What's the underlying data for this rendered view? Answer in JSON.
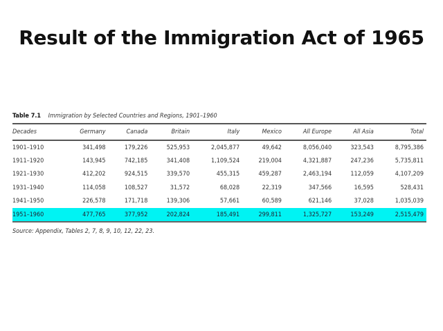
{
  "slide": {
    "title": "Result of the Immigration Act of 1965"
  },
  "table": {
    "label": "Table 7.1",
    "caption": "Immigration by Selected Countries and Regions, 1901–1960",
    "columns": [
      "Decades",
      "Germany",
      "Canada",
      "Britain",
      "Italy",
      "Mexico",
      "All Europe",
      "All Asia",
      "Total"
    ],
    "rows": [
      [
        "1901–1910",
        "341,498",
        "179,226",
        "525,953",
        "2,045,877",
        "49,642",
        "8,056,040",
        "323,543",
        "8,795,386"
      ],
      [
        "1911–1920",
        "143,945",
        "742,185",
        "341,408",
        "1,109,524",
        "219,004",
        "4,321,887",
        "247,236",
        "5,735,811"
      ],
      [
        "1921–1930",
        "412,202",
        "924,515",
        "339,570",
        "455,315",
        "459,287",
        "2,463,194",
        "112,059",
        "4,107,209"
      ],
      [
        "1931–1940",
        "114,058",
        "108,527",
        "31,572",
        "68,028",
        "22,319",
        "347,566",
        "16,595",
        "528,431"
      ],
      [
        "1941–1950",
        "226,578",
        "171,718",
        "139,306",
        "57,661",
        "60,589",
        "621,146",
        "37,028",
        "1,035,039"
      ],
      [
        "1951–1960",
        "477,765",
        "377,952",
        "202,824",
        "185,491",
        "299,811",
        "1,325,727",
        "153,249",
        "2,515,479"
      ]
    ],
    "highlighted_row": 5,
    "highlight_color": "#00f3f3",
    "source": "Source: Appendix, Tables 2, 7, 8, 9, 10, 12, 22, 23."
  }
}
